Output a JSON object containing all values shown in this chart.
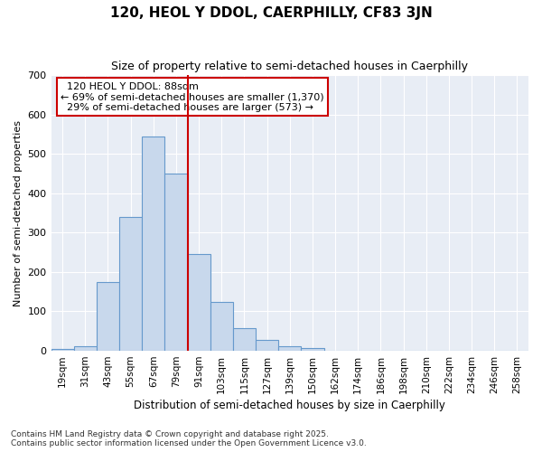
{
  "title1": "120, HEOL Y DDOL, CAERPHILLY, CF83 3JN",
  "title2": "Size of property relative to semi-detached houses in Caerphilly",
  "xlabel": "Distribution of semi-detached houses by size in Caerphilly",
  "ylabel": "Number of semi-detached properties",
  "annotation_title": "120 HEOL Y DDOL: 88sqm",
  "annotation_line1": "← 69% of semi-detached houses are smaller (1,370)",
  "annotation_line2": "29% of semi-detached houses are larger (573) →",
  "footer1": "Contains HM Land Registry data © Crown copyright and database right 2025.",
  "footer2": "Contains public sector information licensed under the Open Government Licence v3.0.",
  "categories": [
    "19sqm",
    "31sqm",
    "43sqm",
    "55sqm",
    "67sqm",
    "79sqm",
    "91sqm",
    "103sqm",
    "115sqm",
    "127sqm",
    "139sqm",
    "150sqm",
    "162sqm",
    "174sqm",
    "186sqm",
    "198sqm",
    "210sqm",
    "222sqm",
    "234sqm",
    "246sqm",
    "258sqm"
  ],
  "values": [
    5,
    12,
    175,
    340,
    545,
    450,
    245,
    125,
    57,
    27,
    12,
    8,
    0,
    0,
    0,
    0,
    0,
    0,
    0,
    0,
    0
  ],
  "bar_color": "#c8d8ec",
  "bar_edge_color": "#6699cc",
  "vline_color": "#cc0000",
  "annotation_box_color": "#cc0000",
  "background_color": "#e8edf5",
  "plot_bg_color": "#e8edf5",
  "ylim": [
    0,
    700
  ],
  "yticks": [
    0,
    100,
    200,
    300,
    400,
    500,
    600,
    700
  ],
  "vline_index": 6
}
